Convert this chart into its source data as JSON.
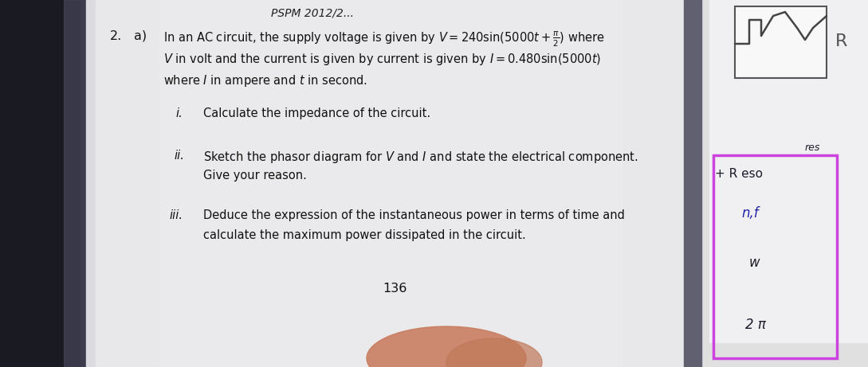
{
  "bg_color": "#2a2a35",
  "page_left_color": "#e8e8ea",
  "page_right_color": "#f5f5f5",
  "spine_color": "#5a5a6a",
  "header_text": "PSPM 2012/2...",
  "q2_label": "2.",
  "qa_label": "a)",
  "line1": "In an AC circuit, the supply voltage is given by $V = 240 \\sin(5000t + \\frac{\\pi}{2})$ where",
  "line2": "$V$ in volt and the current is given by current is given by $I = 0.480 \\sin(5000t)$",
  "line3": "where $I$ in ampere and $t$ in second.",
  "qi_label": "i.",
  "qi_text": "Calculate the impedance of the circuit.",
  "qii_label": "ii.",
  "qii_text1": "Sketch the phasor diagram for $V$ and $I$ and state the electrical component.",
  "qii_text2": "Give your reason.",
  "qiii_label": "iii.",
  "qiii_text1": "Deduce the expression of the instantaneous power in terms of time and",
  "qiii_text2": "calculate the maximum power dissipated in the circuit.",
  "page_num": "136",
  "right_ann1": "res",
  "right_ann2": "+ R eso",
  "right_ann3": "n,f",
  "right_ann4": "w",
  "right_ann5": "2 π",
  "right_R": "R",
  "purple_color": "#cc44dd",
  "dark_handwrite": "#1a1a2a",
  "blue_handwrite": "#2222aa"
}
